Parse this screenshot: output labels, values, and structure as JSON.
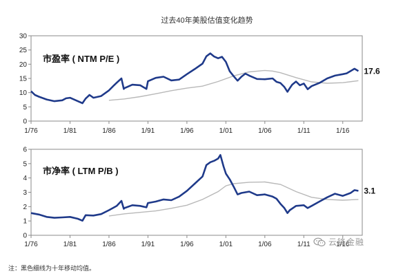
{
  "title": "过去40年美股估值变化趋势",
  "footnote": "注：黑色细线为十年移动均值。",
  "watermark": "云锋金融",
  "colors": {
    "series": "#1f3a8a",
    "average": "#b8b8b8",
    "frame": "#8a8a8a"
  },
  "icons": {
    "watermark": "wechat-icon"
  },
  "chart_data": [
    {
      "type": "line",
      "label": "市盈率 ( NTM P/E )",
      "end_label": "17.6",
      "xlim": [
        1976,
        2018.5
      ],
      "ylim": [
        0,
        30
      ],
      "x_ticks": [
        {
          "x": 1976,
          "label": "1/76"
        },
        {
          "x": 1981,
          "label": "1/81"
        },
        {
          "x": 1986,
          "label": "1/86"
        },
        {
          "x": 1991,
          "label": "1/91"
        },
        {
          "x": 1996,
          "label": "1/96"
        },
        {
          "x": 2001,
          "label": "1/01"
        },
        {
          "x": 2006,
          "label": "1/06"
        },
        {
          "x": 2011,
          "label": "1/11"
        },
        {
          "x": 2016,
          "label": "1/16"
        }
      ],
      "y_ticks": [
        0,
        5,
        10,
        15,
        20,
        25,
        30
      ],
      "series": [
        {
          "x": [
            1976,
            1976.5,
            1977,
            1978,
            1979,
            1980,
            1980.5,
            1981,
            1982,
            1982.6,
            1983,
            1983.5,
            1984,
            1985,
            1986,
            1986.5,
            1987,
            1987.6,
            1987.9,
            1988,
            1989,
            1990,
            1990.8,
            1991,
            1992,
            1993,
            1994,
            1995,
            1996,
            1997,
            1998,
            1998.5,
            1999,
            1999.5,
            2000,
            2000.5,
            2001,
            2001.5,
            2002,
            2002.5,
            2003,
            2003.5,
            2004,
            2005,
            2006,
            2007,
            2007.5,
            2008,
            2008.5,
            2008.9,
            2009.2,
            2009.5,
            2010,
            2010.5,
            2011,
            2011.5,
            2012,
            2013,
            2014,
            2015,
            2016,
            2016.5,
            2017,
            2017.5,
            2018
          ],
          "values": [
            10.5,
            9.2,
            8.6,
            7.6,
            7.0,
            7.3,
            8.0,
            8.2,
            7.0,
            6.3,
            7.9,
            9.2,
            8.2,
            8.8,
            10.8,
            12.2,
            13.5,
            15.0,
            11.3,
            11.6,
            12.8,
            12.6,
            11.3,
            14.0,
            15.2,
            15.6,
            14.3,
            14.6,
            16.5,
            18.3,
            20.2,
            22.8,
            23.8,
            22.7,
            22.1,
            22.6,
            20.8,
            17.5,
            15.8,
            14.2,
            15.6,
            16.7,
            16.0,
            14.8,
            14.7,
            15.0,
            13.8,
            13.4,
            12.0,
            10.3,
            11.6,
            12.8,
            13.9,
            12.6,
            13.2,
            11.2,
            12.3,
            13.4,
            15.0,
            16.0,
            16.5,
            16.8,
            17.6,
            18.4,
            17.6
          ]
        },
        {
          "x": [
            1986,
            1988,
            1990,
            1992,
            1994,
            1996,
            1998,
            2000,
            2002,
            2004,
            2006,
            2007,
            2008,
            2010,
            2012,
            2014,
            2016,
            2018
          ],
          "values": [
            7.3,
            7.8,
            8.6,
            9.6,
            10.7,
            11.6,
            12.3,
            13.9,
            15.9,
            17.3,
            17.8,
            17.6,
            17.0,
            15.3,
            13.8,
            13.3,
            13.5,
            14.2
          ]
        }
      ]
    },
    {
      "type": "line",
      "label": "市净率 ( LTM P/B )",
      "end_label": "3.1",
      "xlim": [
        1976,
        2018.5
      ],
      "ylim": [
        0,
        6
      ],
      "x_ticks": [
        {
          "x": 1976,
          "label": "1/76"
        },
        {
          "x": 1981,
          "label": "1/81"
        },
        {
          "x": 1986,
          "label": "1/86"
        },
        {
          "x": 1991,
          "label": "1/91"
        },
        {
          "x": 1996,
          "label": "1/96"
        },
        {
          "x": 2001,
          "label": "1/01"
        },
        {
          "x": 2006,
          "label": "1/06"
        },
        {
          "x": 2011,
          "label": "1/11"
        },
        {
          "x": 2016,
          "label": "1/16"
        }
      ],
      "y_ticks": [
        0,
        1,
        2,
        3,
        4,
        5,
        6
      ],
      "series": [
        {
          "x": [
            1976,
            1977,
            1978,
            1979,
            1980,
            1981,
            1982,
            1982.6,
            1983,
            1984,
            1985,
            1986,
            1986.5,
            1987,
            1987.6,
            1987.9,
            1988,
            1989,
            1990,
            1990.8,
            1991,
            1992,
            1993,
            1994,
            1995,
            1996,
            1997,
            1998,
            1998.5,
            1999,
            1999.5,
            2000,
            2000.3,
            2000.7,
            2001,
            2001.5,
            2002,
            2002.5,
            2003,
            2004,
            2005,
            2006,
            2007,
            2007.5,
            2008,
            2008.5,
            2008.9,
            2009.2,
            2010,
            2011,
            2011.5,
            2012,
            2013,
            2014,
            2015,
            2016,
            2017,
            2017.5,
            2018
          ],
          "values": [
            1.55,
            1.45,
            1.28,
            1.22,
            1.25,
            1.28,
            1.15,
            1.02,
            1.4,
            1.38,
            1.48,
            1.75,
            1.9,
            2.05,
            2.4,
            1.85,
            1.9,
            2.1,
            2.05,
            1.95,
            2.25,
            2.35,
            2.5,
            2.45,
            2.7,
            3.1,
            3.6,
            4.1,
            4.9,
            5.1,
            5.2,
            5.35,
            5.6,
            4.8,
            4.3,
            3.9,
            3.4,
            2.85,
            2.95,
            3.05,
            2.8,
            2.85,
            2.7,
            2.55,
            2.2,
            1.9,
            1.55,
            1.75,
            2.05,
            2.1,
            1.9,
            2.05,
            2.35,
            2.65,
            2.9,
            2.75,
            2.95,
            3.15,
            3.1
          ]
        },
        {
          "x": [
            1986,
            1988,
            1990,
            1992,
            1994,
            1996,
            1998,
            2000,
            2001,
            2002,
            2004,
            2006,
            2008,
            2010,
            2012,
            2014,
            2016,
            2018
          ],
          "values": [
            1.35,
            1.5,
            1.6,
            1.7,
            1.88,
            2.1,
            2.5,
            3.05,
            3.45,
            3.6,
            3.7,
            3.72,
            3.55,
            3.05,
            2.65,
            2.5,
            2.45,
            2.5
          ]
        }
      ]
    }
  ]
}
